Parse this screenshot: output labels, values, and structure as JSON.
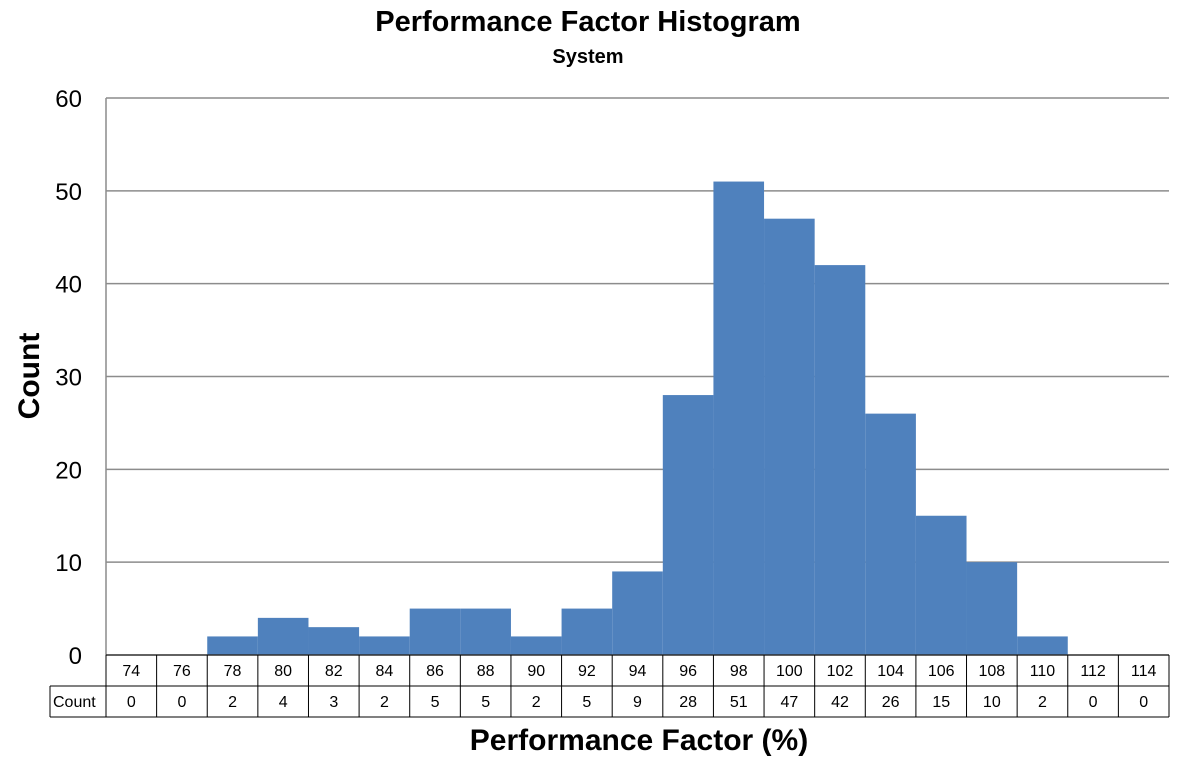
{
  "chart_data": {
    "type": "bar",
    "title": "Performance Factor Histogram",
    "subtitle": "System",
    "xlabel": "Performance Factor (%)",
    "ylabel": "Count",
    "ylim": [
      0,
      60
    ],
    "yticks": [
      "0",
      "10",
      "20",
      "30",
      "40",
      "50",
      "60"
    ],
    "grid": true,
    "categories": [
      "74",
      "76",
      "78",
      "80",
      "82",
      "84",
      "86",
      "88",
      "90",
      "92",
      "94",
      "96",
      "98",
      "100",
      "102",
      "104",
      "106",
      "108",
      "110",
      "112",
      "114"
    ],
    "series": [
      {
        "name": "Count",
        "values": [
          0,
          0,
          2,
          4,
          3,
          2,
          5,
          5,
          2,
          5,
          9,
          28,
          51,
          47,
          42,
          26,
          15,
          10,
          2,
          0,
          0
        ],
        "color": "#4f81bd"
      }
    ],
    "data_table": true
  }
}
